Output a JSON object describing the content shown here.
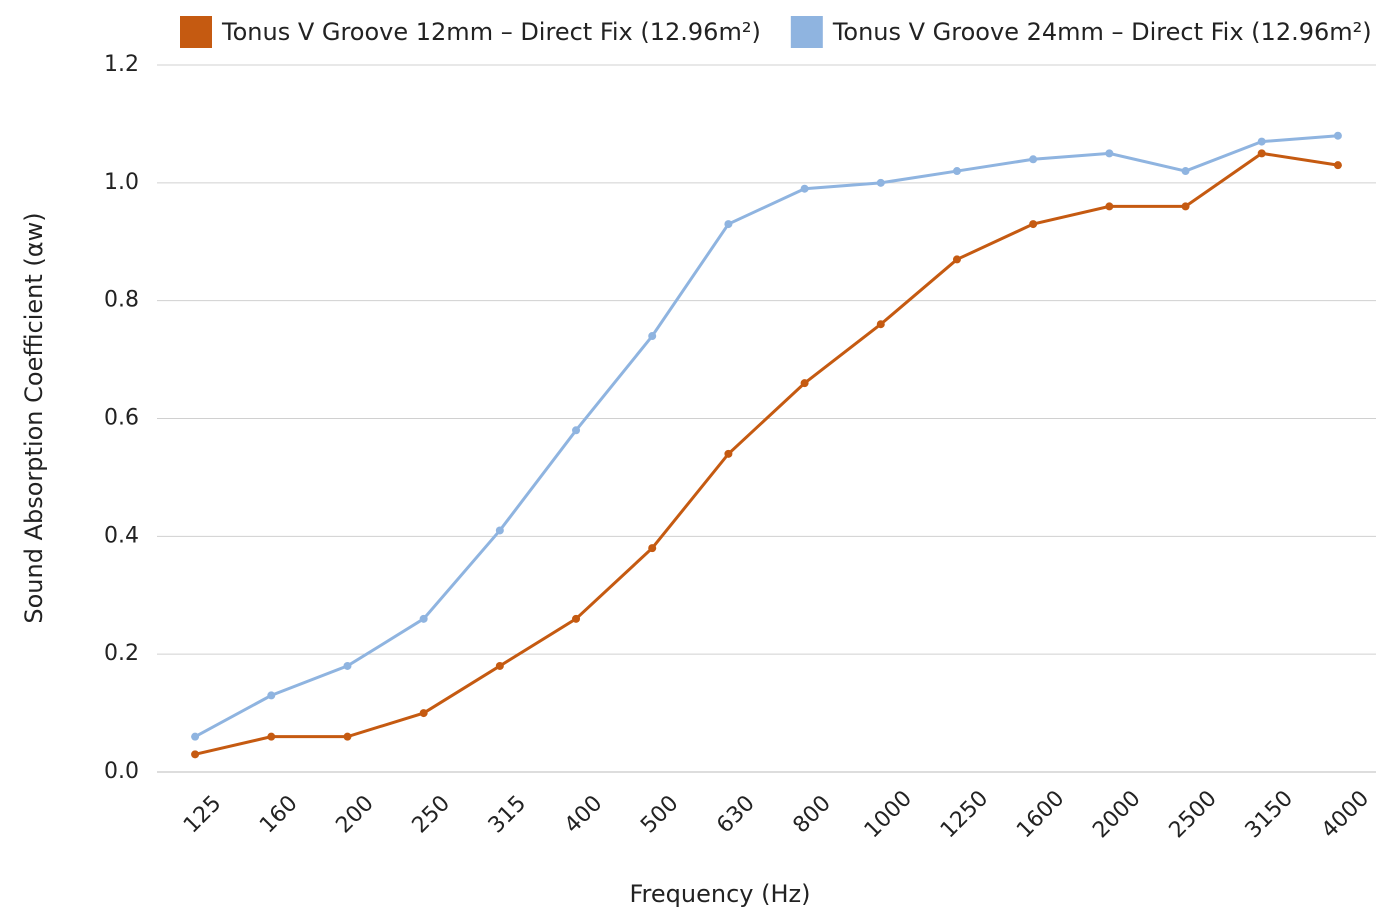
{
  "chart_data": {
    "type": "line",
    "x_label": "Frequency (Hz)",
    "y_label": "Sound Absorption Coefficient (αw)",
    "categories": [
      "125",
      "160",
      "200",
      "250",
      "315",
      "400",
      "500",
      "630",
      "800",
      "1000",
      "1250",
      "1600",
      "2000",
      "2500",
      "3150",
      "4000"
    ],
    "series": [
      {
        "name": "Tonus V Groove 12mm – Direct Fix (12.96m²)",
        "color": "#c55a11",
        "values": [
          0.03,
          0.06,
          0.06,
          0.1,
          0.18,
          0.26,
          0.38,
          0.54,
          0.66,
          0.76,
          0.87,
          0.93,
          0.96,
          0.96,
          1.05,
          1.03
        ]
      },
      {
        "name": "Tonus V Groove 24mm – Direct Fix (12.96m²)",
        "color": "#8fb4e0",
        "values": [
          0.06,
          0.13,
          0.18,
          0.26,
          0.41,
          0.58,
          0.74,
          0.93,
          0.99,
          1.0,
          1.02,
          1.04,
          1.05,
          1.02,
          1.07,
          1.08
        ]
      }
    ],
    "ylim": [
      0,
      1.2
    ],
    "yticks": [
      {
        "value": 0,
        "label": "0.0"
      },
      0.2,
      0.4,
      0.6,
      0.8,
      {
        "value": 1,
        "label": "1.0"
      },
      1.2
    ],
    "grid": true,
    "legend": "top"
  }
}
